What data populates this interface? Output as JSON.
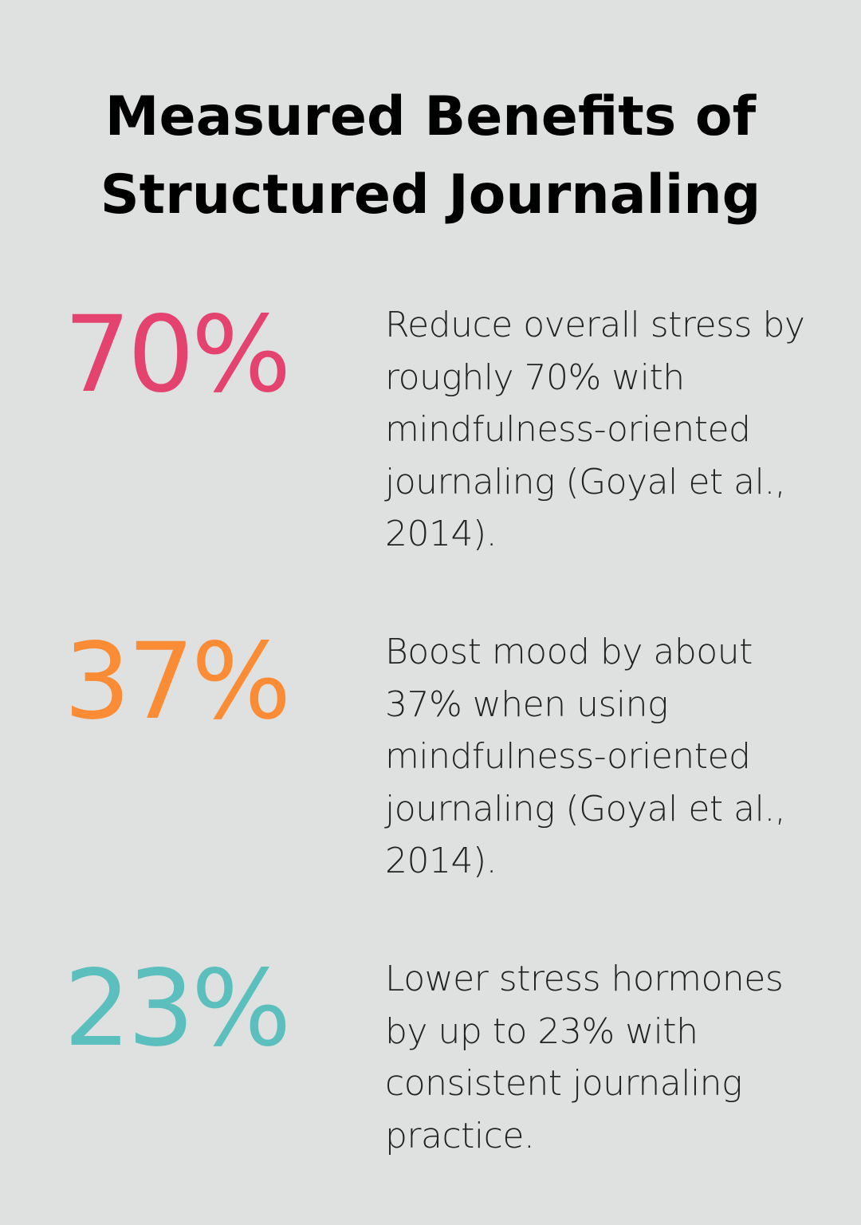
{
  "title": "Measured Benefits of Structured Journaling",
  "stats": [
    {
      "value": "70%",
      "color": "#e5436f",
      "description": "Reduce overall stress by roughly 70% with mindfulness-oriented journaling (Goyal et al., 2014)."
    },
    {
      "value": "37%",
      "color": "#fb8c36",
      "description": "Boost mood by about 37% when using mindfulness-oriented journaling (Goyal et al., 2014)."
    },
    {
      "value": "23%",
      "color": "#5bbfbe",
      "description": "Lower stress hormones by up to 23% with consistent journaling practice."
    }
  ]
}
